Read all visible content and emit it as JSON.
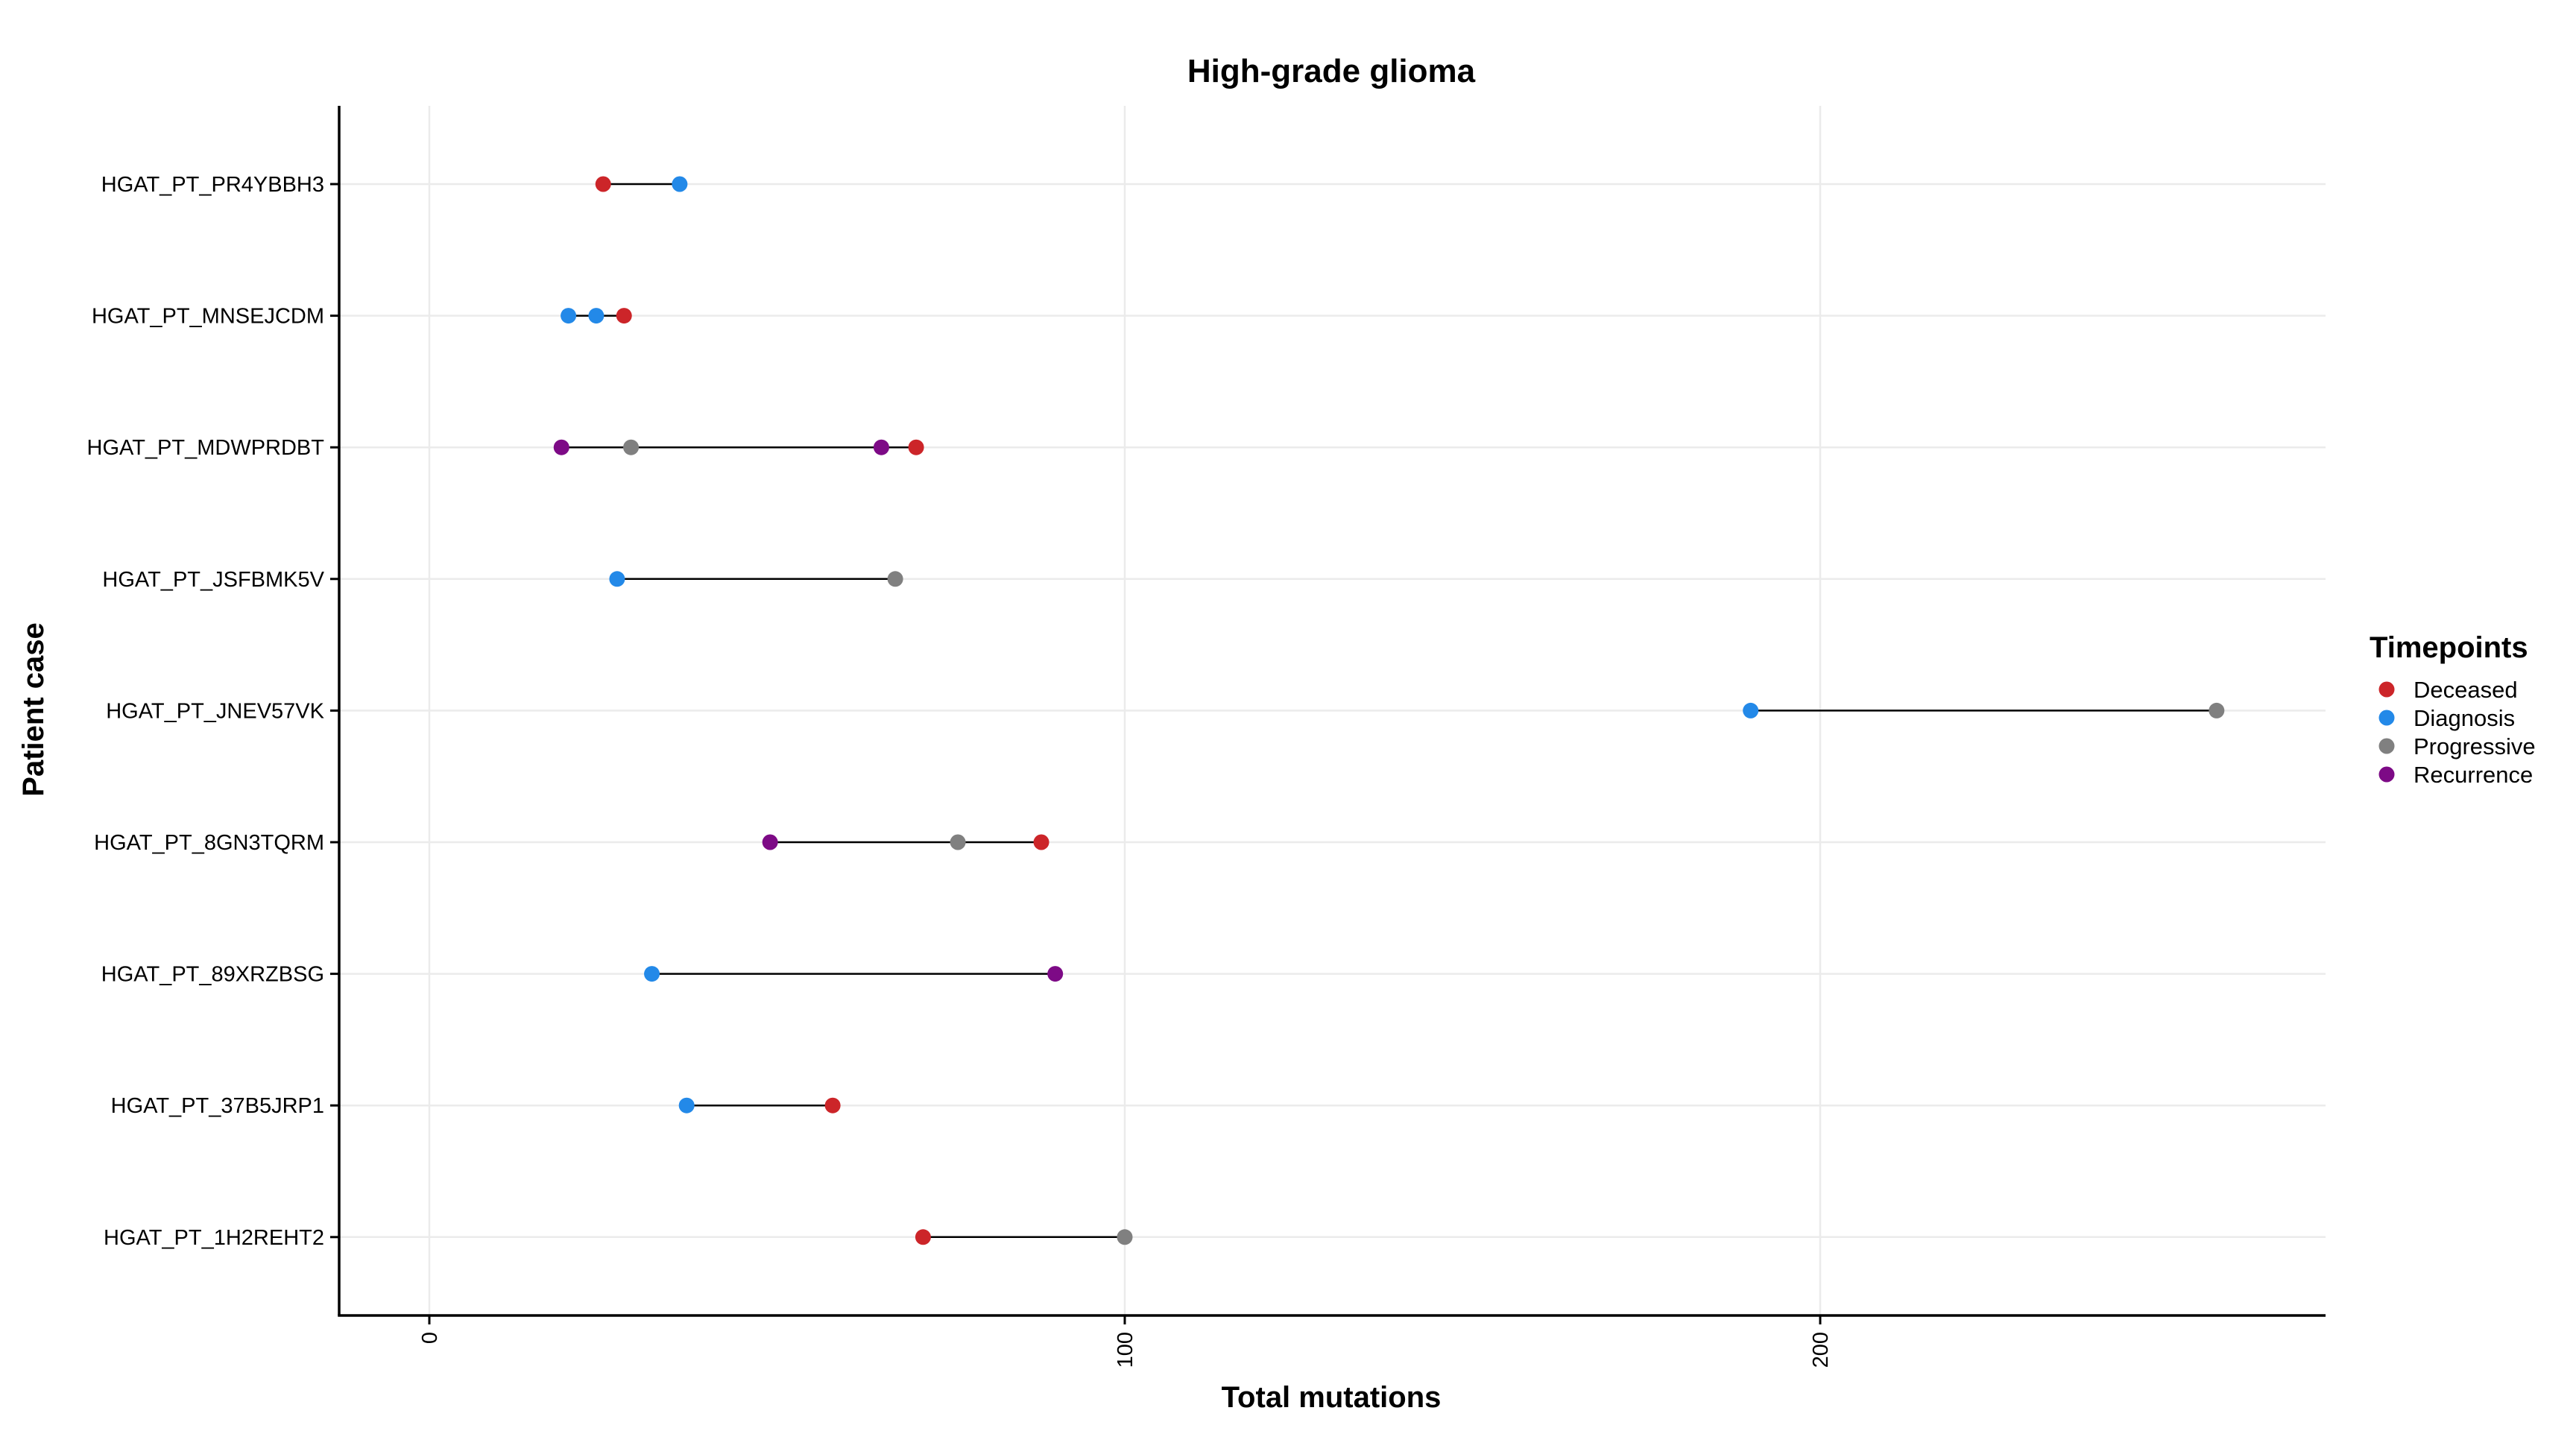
{
  "chart_data": {
    "type": "scatter",
    "title": "High-grade glioma",
    "xlabel": "Total mutations",
    "ylabel": "Patient case",
    "xlim": [
      -13,
      273
    ],
    "x_ticks": [
      0,
      100,
      200
    ],
    "grid": true,
    "legend": {
      "title": "Timepoints",
      "placement": "right",
      "entries": [
        {
          "name": "Deceased",
          "color": "#cc2529"
        },
        {
          "name": "Diagnosis",
          "color": "#2389e8"
        },
        {
          "name": "Progressive",
          "color": "#808080"
        },
        {
          "name": "Recurrence",
          "color": "#7d0a86"
        }
      ]
    },
    "categories": [
      "HGAT_PT_PR4YBBH3",
      "HGAT_PT_MNSEJCDM",
      "HGAT_PT_MDWPRDBT",
      "HGAT_PT_JSFBMK5V",
      "HGAT_PT_JNEV57VK",
      "HGAT_PT_8GN3TQRM",
      "HGAT_PT_89XRZBSG",
      "HGAT_PT_37B5JRP1",
      "HGAT_PT_1H2REHT2"
    ],
    "points": [
      {
        "case": "HGAT_PT_PR4YBBH3",
        "timepoint": "Deceased",
        "x": 25
      },
      {
        "case": "HGAT_PT_PR4YBBH3",
        "timepoint": "Diagnosis",
        "x": 36
      },
      {
        "case": "HGAT_PT_MNSEJCDM",
        "timepoint": "Diagnosis",
        "x": 20
      },
      {
        "case": "HGAT_PT_MNSEJCDM",
        "timepoint": "Diagnosis",
        "x": 24
      },
      {
        "case": "HGAT_PT_MNSEJCDM",
        "timepoint": "Deceased",
        "x": 28
      },
      {
        "case": "HGAT_PT_MDWPRDBT",
        "timepoint": "Recurrence",
        "x": 19
      },
      {
        "case": "HGAT_PT_MDWPRDBT",
        "timepoint": "Progressive",
        "x": 29
      },
      {
        "case": "HGAT_PT_MDWPRDBT",
        "timepoint": "Recurrence",
        "x": 65
      },
      {
        "case": "HGAT_PT_MDWPRDBT",
        "timepoint": "Deceased",
        "x": 70
      },
      {
        "case": "HGAT_PT_JSFBMK5V",
        "timepoint": "Diagnosis",
        "x": 27
      },
      {
        "case": "HGAT_PT_JSFBMK5V",
        "timepoint": "Progressive",
        "x": 67
      },
      {
        "case": "HGAT_PT_JNEV57VK",
        "timepoint": "Diagnosis",
        "x": 190
      },
      {
        "case": "HGAT_PT_JNEV57VK",
        "timepoint": "Progressive",
        "x": 257
      },
      {
        "case": "HGAT_PT_8GN3TQRM",
        "timepoint": "Recurrence",
        "x": 49
      },
      {
        "case": "HGAT_PT_8GN3TQRM",
        "timepoint": "Progressive",
        "x": 76
      },
      {
        "case": "HGAT_PT_8GN3TQRM",
        "timepoint": "Deceased",
        "x": 88
      },
      {
        "case": "HGAT_PT_89XRZBSG",
        "timepoint": "Diagnosis",
        "x": 32
      },
      {
        "case": "HGAT_PT_89XRZBSG",
        "timepoint": "Recurrence",
        "x": 90
      },
      {
        "case": "HGAT_PT_37B5JRP1",
        "timepoint": "Diagnosis",
        "x": 37
      },
      {
        "case": "HGAT_PT_37B5JRP1",
        "timepoint": "Deceased",
        "x": 58
      },
      {
        "case": "HGAT_PT_1H2REHT2",
        "timepoint": "Deceased",
        "x": 71
      },
      {
        "case": "HGAT_PT_1H2REHT2",
        "timepoint": "Progressive",
        "x": 100
      }
    ]
  }
}
